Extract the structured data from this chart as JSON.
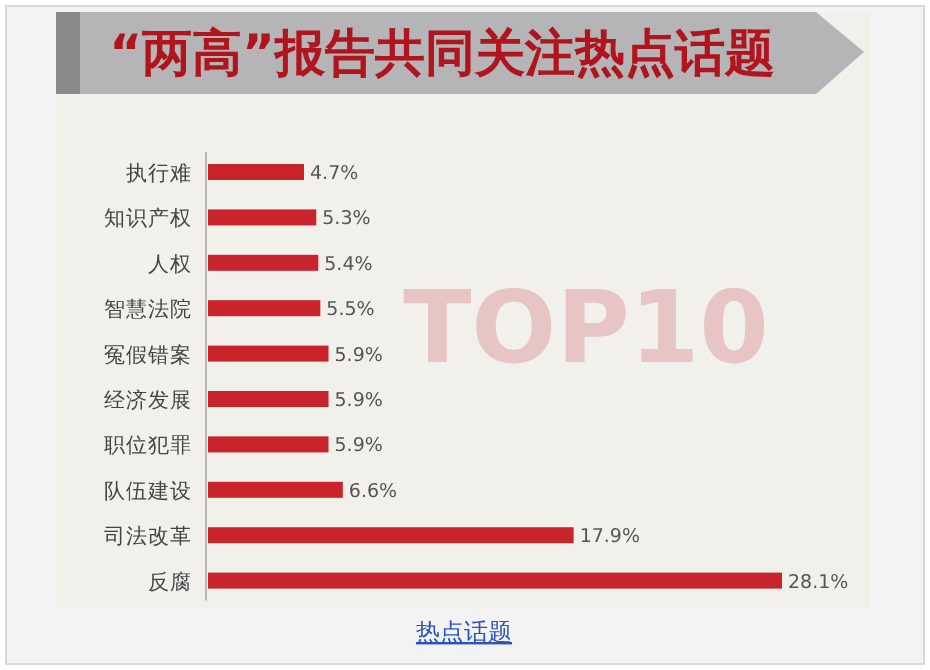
{
  "chart_data": {
    "type": "bar",
    "orientation": "horizontal",
    "title": "“两高”报告共同关注热点话题",
    "categories": [
      "执行难",
      "知识产权",
      "人权",
      "智慧法院",
      "冤假错案",
      "经济发展",
      "职位犯罪",
      "队伍建设",
      "司法改革",
      "反腐"
    ],
    "values": [
      4.7,
      5.3,
      5.4,
      5.5,
      5.9,
      5.9,
      5.9,
      6.6,
      17.9,
      28.1
    ],
    "value_labels": [
      "4.7%",
      "5.3%",
      "5.4%",
      "5.5%",
      "5.9%",
      "5.9%",
      "5.9%",
      "6.6%",
      "17.9%",
      "28.1%"
    ],
    "color": "#c9242c",
    "annotations": [
      "TOP10",
      "热点话题"
    ]
  }
}
